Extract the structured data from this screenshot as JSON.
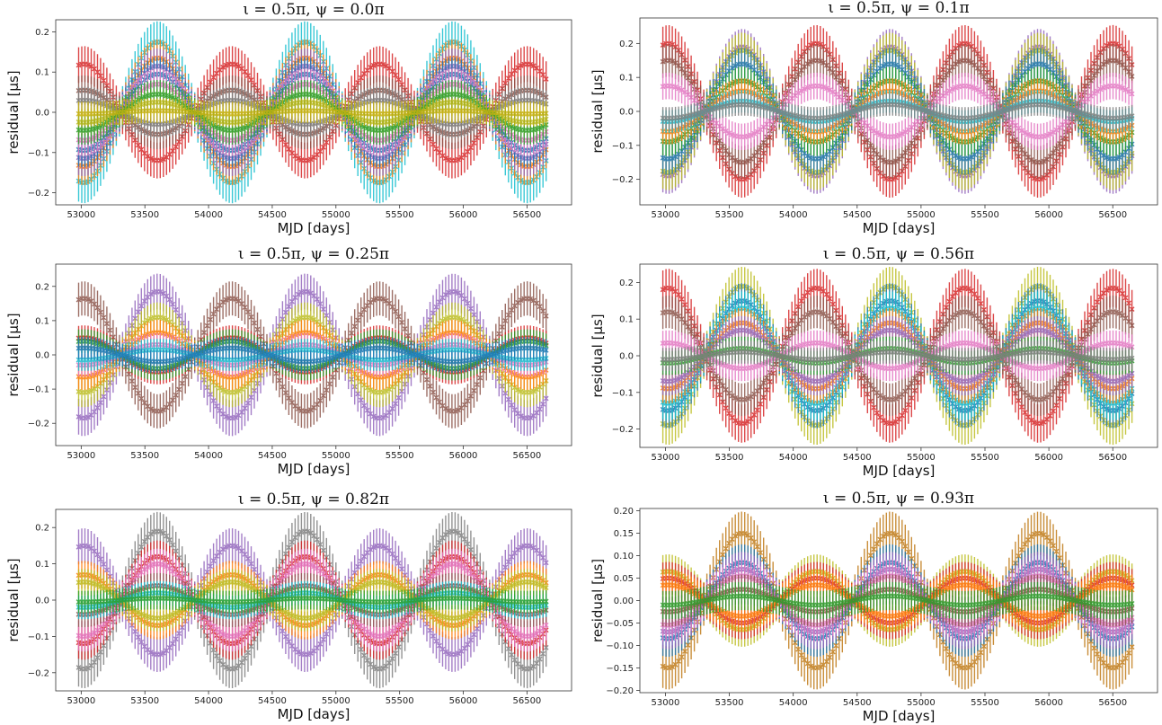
{
  "figure": {
    "xlabel": "MJD [days]",
    "ylabel": "residual [μs]"
  },
  "chart_data": [
    {
      "type": "line",
      "title": "ι = 0.5π, ψ = 0.0π",
      "xlabel": "MJD [days]",
      "ylabel": "residual [μs]",
      "xlim": [
        52800,
        56850
      ],
      "ylim": [
        -0.23,
        0.23
      ],
      "xticks": [
        53000,
        53500,
        54000,
        54500,
        55000,
        55500,
        56000,
        56500
      ],
      "yticks": [
        -0.2,
        -0.1,
        0.0,
        0.1,
        0.2
      ],
      "ytick_labels": [
        "−0.2",
        "−0.1",
        "0.0",
        "0.1",
        "0.2"
      ],
      "marker": "x",
      "errorbars": true,
      "period_days": 1160,
      "x_range": [
        52980,
        56650
      ],
      "series": [
        {
          "color": "#17becf",
          "amplitude": 0.175,
          "phase": 1.57
        },
        {
          "color": "#d62728",
          "amplitude": -0.12,
          "phase": 1.57
        },
        {
          "color": "#ff7f0e",
          "amplitude": 0.135,
          "phase": 1.57
        },
        {
          "color": "#9467bd",
          "amplitude": 0.115,
          "phase": 1.57
        },
        {
          "color": "#1f77b4",
          "amplitude": 0.095,
          "phase": 1.57
        },
        {
          "color": "#8c564b",
          "amplitude": -0.055,
          "phase": 1.57
        },
        {
          "color": "#e377c2",
          "amplitude": 0.07,
          "phase": 1.57
        },
        {
          "color": "#7f7f7f",
          "amplitude": -0.03,
          "phase": 1.57
        },
        {
          "color": "#bcbd22",
          "amplitude": 0.025,
          "phase": 1.57
        },
        {
          "color": "#2ca02c",
          "amplitude": 0.045,
          "phase": 1.57
        },
        {
          "color": "#c7b010",
          "amplitude": 0.004,
          "phase": 1.57
        }
      ]
    },
    {
      "type": "line",
      "title": "ι = 0.5π, ψ = 0.1π",
      "xlabel": "MJD [days]",
      "ylabel": "residual [μs]",
      "xlim": [
        52800,
        56850
      ],
      "ylim": [
        -0.275,
        0.275
      ],
      "xticks": [
        53000,
        53500,
        54000,
        54500,
        55000,
        55500,
        56000,
        56500
      ],
      "yticks": [
        -0.2,
        -0.1,
        0.0,
        0.1,
        0.2
      ],
      "ytick_labels": [
        "−0.2",
        "−0.1",
        "0.0",
        "0.1",
        "0.2"
      ],
      "marker": "x",
      "errorbars": true,
      "period_days": 1160,
      "x_range": [
        52980,
        56650
      ],
      "series": [
        {
          "color": "#d62728",
          "amplitude": -0.2,
          "phase": 1.57
        },
        {
          "color": "#9467bd",
          "amplitude": 0.19,
          "phase": 1.57
        },
        {
          "color": "#bcbd22",
          "amplitude": 0.18,
          "phase": 1.57
        },
        {
          "color": "#1f77b4",
          "amplitude": 0.14,
          "phase": 1.57
        },
        {
          "color": "#8c564b",
          "amplitude": -0.15,
          "phase": 1.57
        },
        {
          "color": "#2ca02c",
          "amplitude": 0.09,
          "phase": 1.57
        },
        {
          "color": "#ff7f0e",
          "amplitude": 0.06,
          "phase": 1.57
        },
        {
          "color": "#e377c2",
          "amplitude": -0.075,
          "phase": 1.57
        },
        {
          "color": "#17becf",
          "amplitude": 0.03,
          "phase": 1.57
        },
        {
          "color": "#7f7f7f",
          "amplitude": 0.02,
          "phase": 1.57
        }
      ]
    },
    {
      "type": "line",
      "title": "ι = 0.5π, ψ = 0.25π",
      "xlabel": "MJD [days]",
      "ylabel": "residual [μs]",
      "xlim": [
        52800,
        56850
      ],
      "ylim": [
        -0.265,
        0.265
      ],
      "xticks": [
        53000,
        53500,
        54000,
        54500,
        55000,
        55500,
        56000,
        56500
      ],
      "yticks": [
        -0.2,
        -0.1,
        0.0,
        0.1,
        0.2
      ],
      "ytick_labels": [
        "−0.2",
        "−0.1",
        "0.0",
        "0.1",
        "0.2"
      ],
      "marker": "x",
      "errorbars": true,
      "period_days": 1160,
      "x_range": [
        52980,
        56650
      ],
      "series": [
        {
          "color": "#9467bd",
          "amplitude": 0.185,
          "phase": 1.57
        },
        {
          "color": "#8c564b",
          "amplitude": -0.165,
          "phase": 1.57
        },
        {
          "color": "#bcbd22",
          "amplitude": 0.11,
          "phase": 1.57
        },
        {
          "color": "#ff7f0e",
          "amplitude": 0.065,
          "phase": 1.57
        },
        {
          "color": "#d62728",
          "amplitude": -0.05,
          "phase": 1.57
        },
        {
          "color": "#2ca02c",
          "amplitude": -0.04,
          "phase": 1.57
        },
        {
          "color": "#e377c2",
          "amplitude": 0.03,
          "phase": 1.57
        },
        {
          "color": "#17becf",
          "amplitude": 0.015,
          "phase": 1.57
        },
        {
          "color": "#1f77b4",
          "amplitude": -0.02,
          "phase": 1.57
        }
      ]
    },
    {
      "type": "line",
      "title": "ι = 0.5π, ψ = 0.56π",
      "xlabel": "MJD [days]",
      "ylabel": "residual [μs]",
      "xlim": [
        52800,
        56850
      ],
      "ylim": [
        -0.25,
        0.25
      ],
      "xticks": [
        53000,
        53500,
        54000,
        54500,
        55000,
        55500,
        56000,
        56500
      ],
      "yticks": [
        -0.2,
        -0.1,
        0.0,
        0.1,
        0.2
      ],
      "ytick_labels": [
        "−0.2",
        "−0.1",
        "0.0",
        "0.1",
        "0.2"
      ],
      "marker": "x",
      "errorbars": true,
      "period_days": 1160,
      "x_range": [
        52980,
        56650
      ],
      "series": [
        {
          "color": "#d62728",
          "amplitude": -0.185,
          "phase": 1.57
        },
        {
          "color": "#bcbd22",
          "amplitude": 0.19,
          "phase": 1.57
        },
        {
          "color": "#1f77b4",
          "amplitude": 0.15,
          "phase": 1.57
        },
        {
          "color": "#17becf",
          "amplitude": 0.13,
          "phase": 1.57
        },
        {
          "color": "#8c564b",
          "amplitude": -0.12,
          "phase": 1.57
        },
        {
          "color": "#ff7f0e",
          "amplitude": 0.09,
          "phase": 1.57
        },
        {
          "color": "#9467bd",
          "amplitude": 0.07,
          "phase": 1.57
        },
        {
          "color": "#e377c2",
          "amplitude": -0.035,
          "phase": 1.57
        },
        {
          "color": "#2ca02c",
          "amplitude": 0.02,
          "phase": 1.57
        },
        {
          "color": "#7f7f7f",
          "amplitude": 0.01,
          "phase": 1.57
        }
      ]
    },
    {
      "type": "line",
      "title": "ι = 0.5π, ψ = 0.82π",
      "xlabel": "MJD [days]",
      "ylabel": "residual [μs]",
      "xlim": [
        52800,
        56850
      ],
      "ylim": [
        -0.25,
        0.25
      ],
      "xticks": [
        53000,
        53500,
        54000,
        54500,
        55000,
        55500,
        56000,
        56500
      ],
      "yticks": [
        -0.2,
        -0.1,
        0.0,
        0.1,
        0.2
      ],
      "ytick_labels": [
        "−0.2",
        "−0.1",
        "0.0",
        "0.1",
        "0.2"
      ],
      "marker": "x",
      "errorbars": true,
      "period_days": 1160,
      "x_range": [
        52980,
        56650
      ],
      "series": [
        {
          "color": "#7f7f7f",
          "amplitude": 0.19,
          "phase": 1.57
        },
        {
          "color": "#9467bd",
          "amplitude": -0.15,
          "phase": 1.57
        },
        {
          "color": "#d62728",
          "amplitude": 0.12,
          "phase": 1.57
        },
        {
          "color": "#e377c2",
          "amplitude": 0.1,
          "phase": 1.57
        },
        {
          "color": "#ff7f0e",
          "amplitude": -0.07,
          "phase": 1.57
        },
        {
          "color": "#bcbd22",
          "amplitude": -0.05,
          "phase": 1.57
        },
        {
          "color": "#8c564b",
          "amplitude": 0.04,
          "phase": 1.57
        },
        {
          "color": "#17becf",
          "amplitude": 0.02,
          "phase": 1.57
        },
        {
          "color": "#2ca02c",
          "amplitude": 0.005,
          "phase": 1.57
        }
      ]
    },
    {
      "type": "line",
      "title": "ι = 0.5π, ψ = 0.93π",
      "xlabel": "MJD [days]",
      "ylabel": "residual [μs]",
      "xlim": [
        52800,
        56850
      ],
      "ylim": [
        -0.205,
        0.205
      ],
      "xticks": [
        53000,
        53500,
        54000,
        54500,
        55000,
        55500,
        56000,
        56500
      ],
      "yticks": [
        -0.2,
        -0.15,
        -0.1,
        -0.05,
        0.0,
        0.05,
        0.1,
        0.15,
        0.2
      ],
      "ytick_labels": [
        "−0.20",
        "−0.15",
        "−0.10",
        "−0.05",
        "0.00",
        "0.05",
        "0.10",
        "0.15",
        "0.20"
      ],
      "marker": "x",
      "errorbars": true,
      "period_days": 1160,
      "x_range": [
        52980,
        56650
      ],
      "series": [
        {
          "color": "#c07a18",
          "amplitude": 0.15,
          "phase": 1.57
        },
        {
          "color": "#bcbd22",
          "amplitude": -0.065,
          "phase": 1.57
        },
        {
          "color": "#d62728",
          "amplitude": -0.05,
          "phase": 1.57
        },
        {
          "color": "#1f77b4",
          "amplitude": 0.085,
          "phase": 1.57
        },
        {
          "color": "#9467bd",
          "amplitude": 0.07,
          "phase": 1.57
        },
        {
          "color": "#e377c2",
          "amplitude": 0.055,
          "phase": 1.57
        },
        {
          "color": "#ff7f0e",
          "amplitude": -0.035,
          "phase": 1.57
        },
        {
          "color": "#8c564b",
          "amplitude": 0.025,
          "phase": 1.57
        },
        {
          "color": "#2ca02c",
          "amplitude": 0.01,
          "phase": 1.57
        }
      ]
    }
  ]
}
